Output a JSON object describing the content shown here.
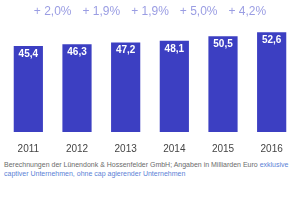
{
  "chart_data": {
    "type": "bar",
    "categories": [
      "2011",
      "2012",
      "2013",
      "2014",
      "2015",
      "2016"
    ],
    "values": [
      45.4,
      46.3,
      47.2,
      48.1,
      50.5,
      52.6
    ],
    "value_labels": [
      "45,4",
      "46,3",
      "47,2",
      "48,1",
      "50,5",
      "52,6"
    ],
    "data_labels": true,
    "color": "#3c3fc2",
    "annotations": [
      "+ 2,0%",
      "+ 1,9%",
      "+ 1,9%",
      "+ 5,0%",
      "+ 4,2%"
    ],
    "ylim": [
      0,
      58
    ],
    "tick_labels": "x",
    "grid": false,
    "source": "Berechnungen der Lünendonk & Hossenfelder GmbH; Angaben in Milliarden Euro",
    "note": [
      "exklusive captiver Unternehmen, ohne cap",
      "agierender Unternehmen"
    ]
  }
}
